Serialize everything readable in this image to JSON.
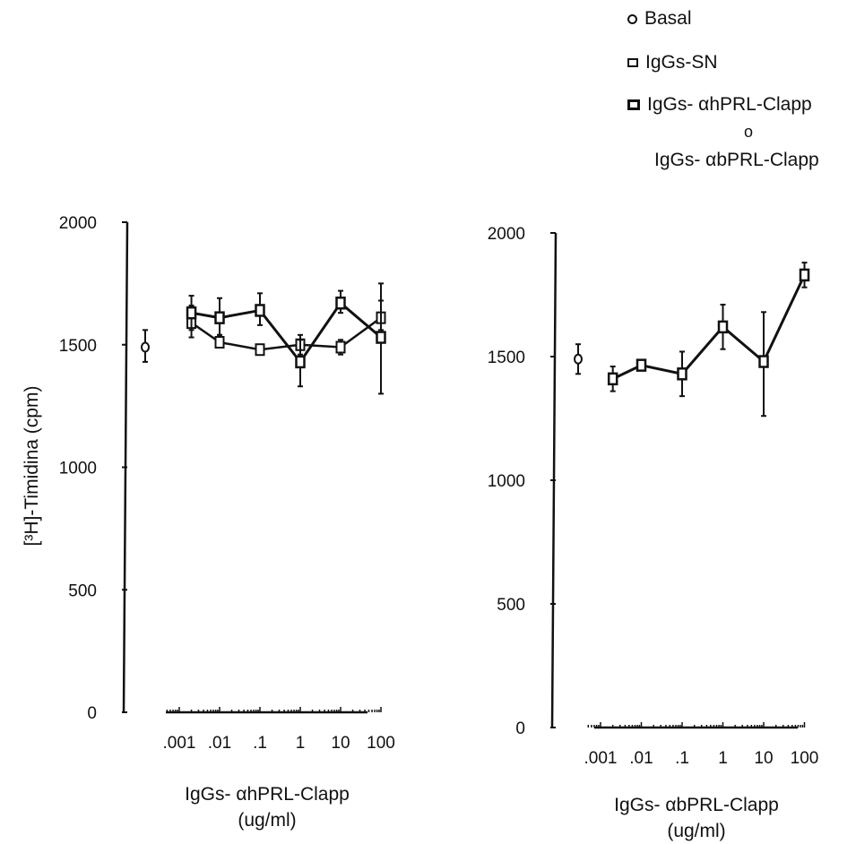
{
  "legend": {
    "items": [
      {
        "marker": "circle",
        "label": "Basal"
      },
      {
        "marker": "square",
        "label": "IgGs-SN"
      },
      {
        "marker": "square-bold",
        "label": "IgGs- αhPRL-Clapp"
      }
    ],
    "separator": "o",
    "extra_label": "IgGs- αbPRL-Clapp"
  },
  "colors": {
    "ink": "#111111",
    "background": "#ffffff"
  },
  "chart_data": [
    {
      "type": "line",
      "panel": "left",
      "ylabel": "[³H]-Timidina (cpm)",
      "xlabel": "IgGs- αhPRL-Clapp",
      "xunit": "(ug/ml)",
      "xscale": "log",
      "ylim": [
        0,
        2000
      ],
      "yticks": [
        0,
        500,
        1000,
        1500,
        2000
      ],
      "xticks": [
        0.001,
        0.01,
        0.1,
        1,
        10,
        100
      ],
      "xtick_labels": [
        ".001",
        ".01",
        ".1",
        "1",
        "10",
        "100"
      ],
      "grid": false,
      "basal": {
        "value": 1490,
        "err_lo": 1430,
        "err_hi": 1560
      },
      "series": [
        {
          "marker": "square",
          "x": [
            0.002,
            0.01,
            0.1,
            1,
            10,
            100
          ],
          "y": [
            1590,
            1510,
            1480,
            1500,
            1490,
            1610
          ],
          "err_lo": [
            1530,
            1490,
            1465,
            1460,
            1460,
            1560
          ],
          "err_hi": [
            1660,
            1540,
            1500,
            1540,
            1520,
            1680
          ]
        },
        {
          "marker": "square-bold",
          "x": [
            0.002,
            0.01,
            0.1,
            1,
            10,
            100
          ],
          "y": [
            1630,
            1610,
            1640,
            1430,
            1670,
            1530
          ],
          "err_lo": [
            1560,
            1540,
            1580,
            1330,
            1630,
            1300
          ],
          "err_hi": [
            1700,
            1690,
            1710,
            1520,
            1720,
            1750
          ]
        }
      ]
    },
    {
      "type": "line",
      "panel": "right",
      "ylabel": "",
      "xlabel": "IgGs- αbPRL-Clapp",
      "xunit": "(ug/ml)",
      "xscale": "log",
      "ylim": [
        0,
        2000
      ],
      "yticks": [
        0,
        500,
        1000,
        1500,
        2000
      ],
      "xticks": [
        0.001,
        0.01,
        0.1,
        1,
        10,
        100
      ],
      "xtick_labels": [
        ".001",
        ".01",
        ".1",
        "1",
        "10",
        "100"
      ],
      "grid": false,
      "basal": {
        "value": 1490,
        "err_lo": 1430,
        "err_hi": 1550
      },
      "series": [
        {
          "marker": "square-bold",
          "x": [
            0.002,
            0.01,
            0.1,
            1,
            10,
            100
          ],
          "y": [
            1410,
            1465,
            1430,
            1620,
            1480,
            1830
          ],
          "err_lo": [
            1360,
            1445,
            1340,
            1530,
            1260,
            1780
          ],
          "err_hi": [
            1460,
            1485,
            1520,
            1710,
            1680,
            1880
          ]
        }
      ]
    }
  ]
}
